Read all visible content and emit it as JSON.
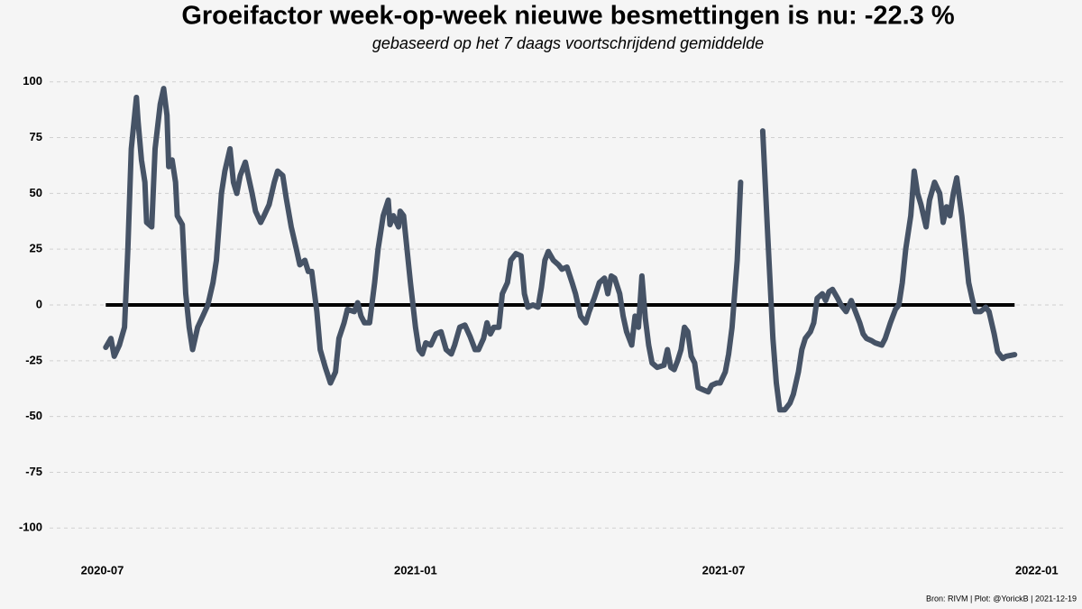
{
  "chart_data": {
    "type": "line",
    "title": "Groeifactor week-op-week nieuwe besmettingen is nu:  -22.3 %",
    "subtitle": "gebaseerd op het 7 daags voortschrijdend gemiddelde",
    "footer": "Bron: RIVM | Plot: @YorickB |  2021-12-19",
    "color": "#465366",
    "reference_line": {
      "value": 0,
      "color": "#000000"
    },
    "grid": true,
    "xlim": [
      "2020-05-31",
      "2022-01-17"
    ],
    "xticks": [
      {
        "value": "2020-07-01",
        "label": "2020-07"
      },
      {
        "value": "2021-01-01",
        "label": "2021-01"
      },
      {
        "value": "2021-07-01",
        "label": "2021-07"
      },
      {
        "value": "2022-01-01",
        "label": "2022-01"
      }
    ],
    "ylim": [
      -110,
      110
    ],
    "yticks": [
      100,
      75,
      50,
      25,
      0,
      -25,
      -50,
      -75,
      -100
    ],
    "x": [
      "2020-07-03",
      "2020-07-06",
      "2020-07-08",
      "2020-07-11",
      "2020-07-14",
      "2020-07-16",
      "2020-07-18",
      "2020-07-21",
      "2020-07-22",
      "2020-07-24",
      "2020-07-26",
      "2020-07-27",
      "2020-07-30",
      "2020-08-01",
      "2020-08-04",
      "2020-08-06",
      "2020-08-08",
      "2020-08-09",
      "2020-08-11",
      "2020-08-13",
      "2020-08-14",
      "2020-08-17",
      "2020-08-19",
      "2020-08-21",
      "2020-08-23",
      "2020-08-26",
      "2020-08-29",
      "2020-09-01",
      "2020-09-04",
      "2020-09-06",
      "2020-09-09",
      "2020-09-11",
      "2020-09-14",
      "2020-09-16",
      "2020-09-18",
      "2020-09-20",
      "2020-09-23",
      "2020-09-25",
      "2020-09-27",
      "2020-09-29",
      "2020-10-02",
      "2020-10-04",
      "2020-10-07",
      "2020-10-10",
      "2020-10-12",
      "2020-10-15",
      "2020-10-17",
      "2020-10-20",
      "2020-10-23",
      "2020-10-25",
      "2020-10-28",
      "2020-10-30",
      "2020-11-01",
      "2020-11-04",
      "2020-11-06",
      "2020-11-09",
      "2020-11-12",
      "2020-11-15",
      "2020-11-17",
      "2020-11-20",
      "2020-11-22",
      "2020-11-26",
      "2020-11-28",
      "2020-11-30",
      "2020-12-02",
      "2020-12-05",
      "2020-12-08",
      "2020-12-10",
      "2020-12-13",
      "2020-12-16",
      "2020-12-17",
      "2020-12-19",
      "2020-12-22",
      "2020-12-23",
      "2020-12-25",
      "2020-12-27",
      "2020-12-29",
      "2021-01-01",
      "2021-01-03",
      "2021-01-05",
      "2021-01-07",
      "2021-01-10",
      "2021-01-13",
      "2021-01-16",
      "2021-01-19",
      "2021-01-22",
      "2021-01-24",
      "2021-01-27",
      "2021-01-30",
      "2021-02-02",
      "2021-02-05",
      "2021-02-07",
      "2021-02-10",
      "2021-02-12",
      "2021-02-14",
      "2021-02-16",
      "2021-02-19",
      "2021-02-21",
      "2021-02-24",
      "2021-02-26",
      "2021-03-01",
      "2021-03-04",
      "2021-03-06",
      "2021-03-08",
      "2021-03-11",
      "2021-03-14",
      "2021-03-16",
      "2021-03-18",
      "2021-03-20",
      "2021-03-23",
      "2021-03-26",
      "2021-03-28",
      "2021-03-31",
      "2021-04-03",
      "2021-04-05",
      "2021-04-08",
      "2021-04-11",
      "2021-04-13",
      "2021-04-16",
      "2021-04-19",
      "2021-04-22",
      "2021-04-24",
      "2021-04-26",
      "2021-04-28",
      "2021-05-01",
      "2021-05-03",
      "2021-05-05",
      "2021-05-08",
      "2021-05-10",
      "2021-05-12",
      "2021-05-14",
      "2021-05-16",
      "2021-05-18",
      "2021-05-20",
      "2021-05-23",
      "2021-05-27",
      "2021-05-29",
      "2021-05-31",
      "2021-06-02",
      "2021-06-04",
      "2021-06-06",
      "2021-06-08",
      "2021-06-10",
      "2021-06-12",
      "2021-06-14",
      "2021-06-16",
      "2021-06-19",
      "2021-06-22",
      "2021-06-24",
      "2021-06-27",
      "2021-06-29",
      "2021-07-02",
      "2021-07-04",
      "2021-07-06",
      "2021-07-09",
      "2021-07-11",
      "2021-07-17",
      "2021-07-24",
      "2021-07-27",
      "2021-07-30",
      "2021-08-01",
      "2021-08-03",
      "2021-08-06",
      "2021-08-09",
      "2021-08-11",
      "2021-08-14",
      "2021-08-16",
      "2021-08-18",
      "2021-08-21",
      "2021-08-23",
      "2021-08-25",
      "2021-08-28",
      "2021-08-30",
      "2021-09-01",
      "2021-09-03",
      "2021-09-06",
      "2021-09-08",
      "2021-09-11",
      "2021-09-14",
      "2021-09-16",
      "2021-09-19",
      "2021-09-21",
      "2021-09-23",
      "2021-09-26",
      "2021-09-28",
      "2021-10-02",
      "2021-10-04",
      "2021-10-07",
      "2021-10-10",
      "2021-10-12",
      "2021-10-14",
      "2021-10-16",
      "2021-10-19",
      "2021-10-21",
      "2021-10-23",
      "2021-10-25",
      "2021-10-28",
      "2021-10-30",
      "2021-11-02",
      "2021-11-05",
      "2021-11-07",
      "2021-11-09",
      "2021-11-11",
      "2021-11-13",
      "2021-11-15",
      "2021-11-18",
      "2021-11-20",
      "2021-11-22",
      "2021-11-24",
      "2021-11-26",
      "2021-11-29",
      "2021-12-02",
      "2021-12-04",
      "2021-12-07",
      "2021-12-09",
      "2021-12-12",
      "2021-12-14",
      "2021-12-19"
    ],
    "values": [
      -19,
      -15,
      -23,
      -18,
      -10,
      25,
      70,
      93,
      82,
      65,
      55,
      37,
      35,
      70,
      90,
      97,
      85,
      62,
      65,
      55,
      40,
      36,
      5,
      -10,
      -20,
      -10,
      -5,
      0,
      10,
      20,
      50,
      60,
      70,
      55,
      50,
      58,
      64,
      57,
      50,
      42,
      37,
      40,
      45,
      55,
      60,
      58,
      48,
      35,
      25,
      18,
      20,
      15,
      15,
      -3,
      -20,
      -28,
      -35,
      -30,
      -15,
      -8,
      -2,
      -3,
      1,
      -5,
      -8,
      -8,
      10,
      25,
      40,
      47,
      36,
      40,
      35,
      42,
      40,
      25,
      10,
      -10,
      -20,
      -22,
      -17,
      -18,
      -13,
      -12,
      -20,
      -22,
      -18,
      -10,
      -9,
      -14,
      -20,
      -20,
      -15,
      -8,
      -13,
      -10,
      -10,
      5,
      10,
      20,
      23,
      22,
      5,
      -1,
      0,
      -1,
      8,
      20,
      24,
      20,
      18,
      16,
      17,
      10,
      5,
      -5,
      -8,
      -3,
      3,
      10,
      12,
      5,
      13,
      12,
      5,
      -5,
      -12,
      -18,
      -5,
      -10,
      13,
      -6,
      -18,
      -26,
      -28,
      -27,
      -20,
      -28,
      -29,
      -25,
      -20,
      -10,
      -12,
      -23,
      -26,
      -37,
      -38,
      -39,
      -36,
      -35,
      -35,
      -30,
      -22,
      -10,
      20,
      55,
      null,
      78,
      30,
      -15,
      -35,
      -47,
      -47,
      -44,
      -40,
      -30,
      -20,
      -15,
      -12,
      -8,
      3,
      5,
      2,
      6,
      7,
      3,
      0,
      -3,
      2,
      -2,
      -8,
      -13,
      -15,
      -16,
      -17,
      -18,
      -15,
      -8,
      -2,
      0,
      10,
      25,
      40,
      60,
      50,
      45,
      35,
      47,
      55,
      50,
      37,
      44,
      40,
      50,
      57,
      40,
      25,
      10,
      3,
      -3,
      -3,
      -1,
      -3,
      -13,
      -21,
      -24,
      -23,
      -22.3
    ]
  }
}
